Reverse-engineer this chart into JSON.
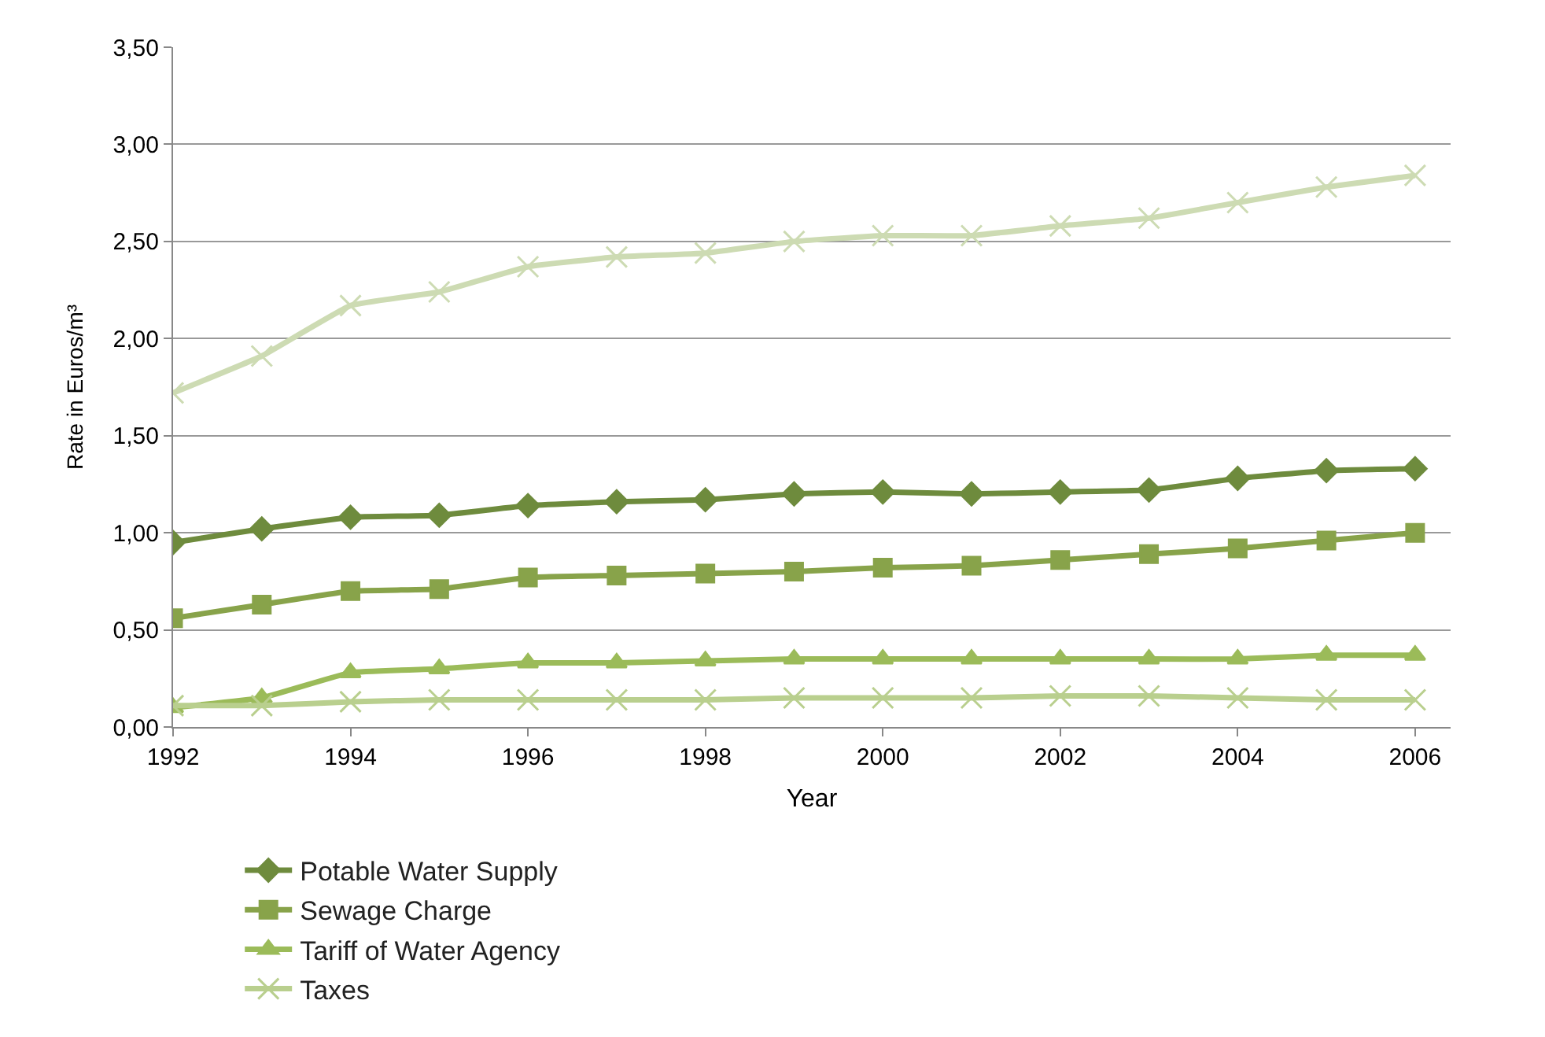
{
  "chart_data": {
    "type": "line",
    "xlabel": "Year",
    "ylabel": "Rate in Euros/m³",
    "x": [
      1992,
      1993,
      1994,
      1995,
      1996,
      1997,
      1998,
      1999,
      2000,
      2001,
      2002,
      2003,
      2004,
      2005,
      2006
    ],
    "series": [
      {
        "name": "Potable Water Supply",
        "color": "#6e8b3d",
        "marker": "diamond",
        "values": [
          0.95,
          1.02,
          1.08,
          1.09,
          1.14,
          1.16,
          1.17,
          1.2,
          1.21,
          1.2,
          1.21,
          1.22,
          1.28,
          1.32,
          1.33
        ]
      },
      {
        "name": "Sewage Charge",
        "color": "#88a34a",
        "marker": "square",
        "values": [
          0.56,
          0.63,
          0.7,
          0.71,
          0.77,
          0.78,
          0.79,
          0.8,
          0.82,
          0.83,
          0.86,
          0.89,
          0.92,
          0.96,
          1.0
        ]
      },
      {
        "name": "Tariff of Water Agency",
        "color": "#9bbb59",
        "marker": "triangle",
        "values": [
          0.1,
          0.15,
          0.28,
          0.3,
          0.33,
          0.33,
          0.34,
          0.35,
          0.35,
          0.35,
          0.35,
          0.35,
          0.35,
          0.37,
          0.37
        ]
      },
      {
        "name": "Taxes",
        "color": "#b9cf8e",
        "marker": "cross",
        "values": [
          0.11,
          0.11,
          0.13,
          0.14,
          0.14,
          0.14,
          0.14,
          0.15,
          0.15,
          0.15,
          0.16,
          0.16,
          0.15,
          0.14,
          0.14
        ]
      },
      {
        "color": "#cddbb3",
        "marker": "cross",
        "values": [
          1.72,
          1.91,
          2.17,
          2.24,
          2.37,
          2.42,
          2.44,
          2.5,
          2.53,
          2.53,
          2.58,
          2.62,
          2.7,
          2.78,
          2.84
        ]
      }
    ],
    "xlim": [
      1992,
      2006.4
    ],
    "xticks": [
      1992,
      1994,
      1996,
      1998,
      2000,
      2002,
      2004,
      2006
    ],
    "ylim": [
      0,
      3.5
    ],
    "yticks": [
      {
        "value": 0,
        "label": "0,00"
      },
      {
        "value": 0.5,
        "label": "0,50"
      },
      {
        "value": 1,
        "label": "1,00"
      },
      {
        "value": 1.5,
        "label": "1,50"
      },
      {
        "value": 2,
        "label": "2,00"
      },
      {
        "value": 2.5,
        "label": "2,50"
      },
      {
        "value": 3,
        "label": "3,00"
      },
      {
        "value": 3.5,
        "label": "3,50"
      }
    ],
    "grid": "y",
    "legend": "bottom",
    "line_style": "solid"
  }
}
